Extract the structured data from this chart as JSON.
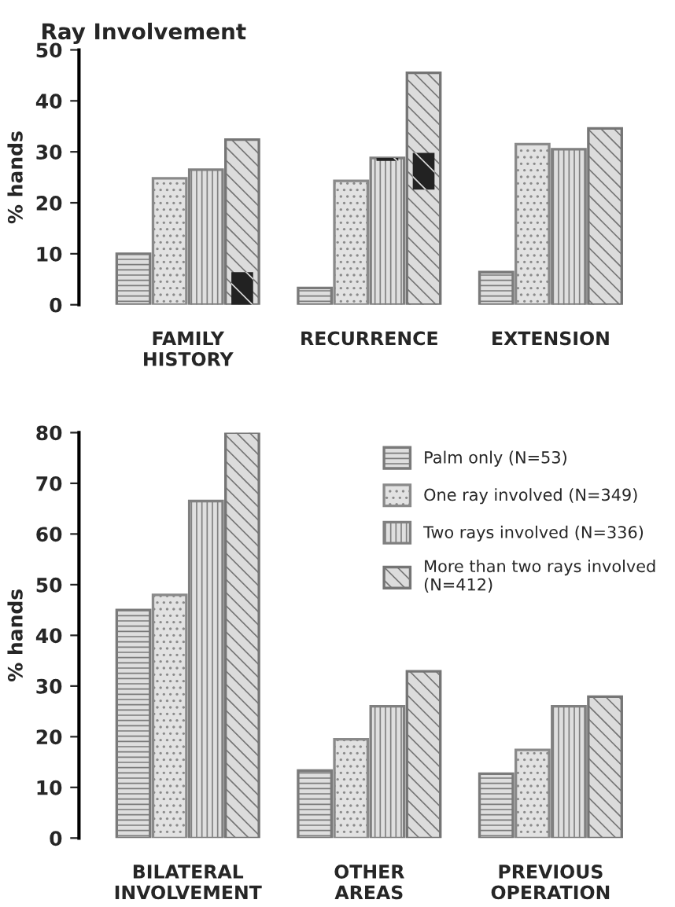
{
  "chart_data": [
    {
      "type": "bar",
      "title": "Ray Involvement",
      "ylabel": "% hands",
      "categories": [
        "FAMILY\nHISTORY",
        "RECURRENCE",
        "EXTENSION"
      ],
      "ylim": [
        0,
        50
      ],
      "yticks": [
        0,
        10,
        20,
        30,
        40,
        50
      ],
      "grid": false,
      "legend": false,
      "series": [
        {
          "color": "#7a7a7a",
          "values": [
            10,
            3.3,
            6.4
          ]
        },
        {
          "color": "#8a8a8a",
          "values": [
            24.8,
            24.3,
            31.5
          ]
        },
        {
          "color": "#808080",
          "values": [
            26.5,
            28.8,
            30.5
          ]
        },
        {
          "color": "#222222",
          "base": [
            null,
            28.2,
            null
          ],
          "values": [
            null,
            0.6,
            null
          ]
        },
        {
          "color": "#757575",
          "values": [
            32.4,
            45.5,
            34.6
          ]
        },
        {
          "color": "#222222",
          "base": [
            0,
            22.6,
            null
          ],
          "values": [
            6.4,
            7.2,
            null
          ]
        }
      ]
    },
    {
      "type": "bar",
      "ylabel": "% hands",
      "categories": [
        "BILATERAL\nINVOLVEMENT",
        "OTHER\nAREAS",
        "PREVIOUS\nOPERATION"
      ],
      "ylim": [
        0,
        80
      ],
      "yticks": [
        0,
        10,
        20,
        30,
        40,
        50,
        60,
        70,
        80
      ],
      "grid": false,
      "legend": "top right",
      "series": [
        {
          "name": "Palm only (N=53)",
          "color": "#7a7a7a",
          "values": [
            45,
            13.3,
            12.7
          ]
        },
        {
          "name": "One ray involved (N=349)",
          "color": "#8a8a8a",
          "values": [
            48,
            19.5,
            17.4
          ]
        },
        {
          "name": "Two rays involved (N=336)",
          "color": "#808080",
          "values": [
            66.5,
            26,
            26
          ]
        },
        {
          "name": "More than two rays involved\n(N=412)",
          "color": "#757575",
          "values": [
            80,
            32.9,
            27.9
          ]
        }
      ]
    }
  ]
}
